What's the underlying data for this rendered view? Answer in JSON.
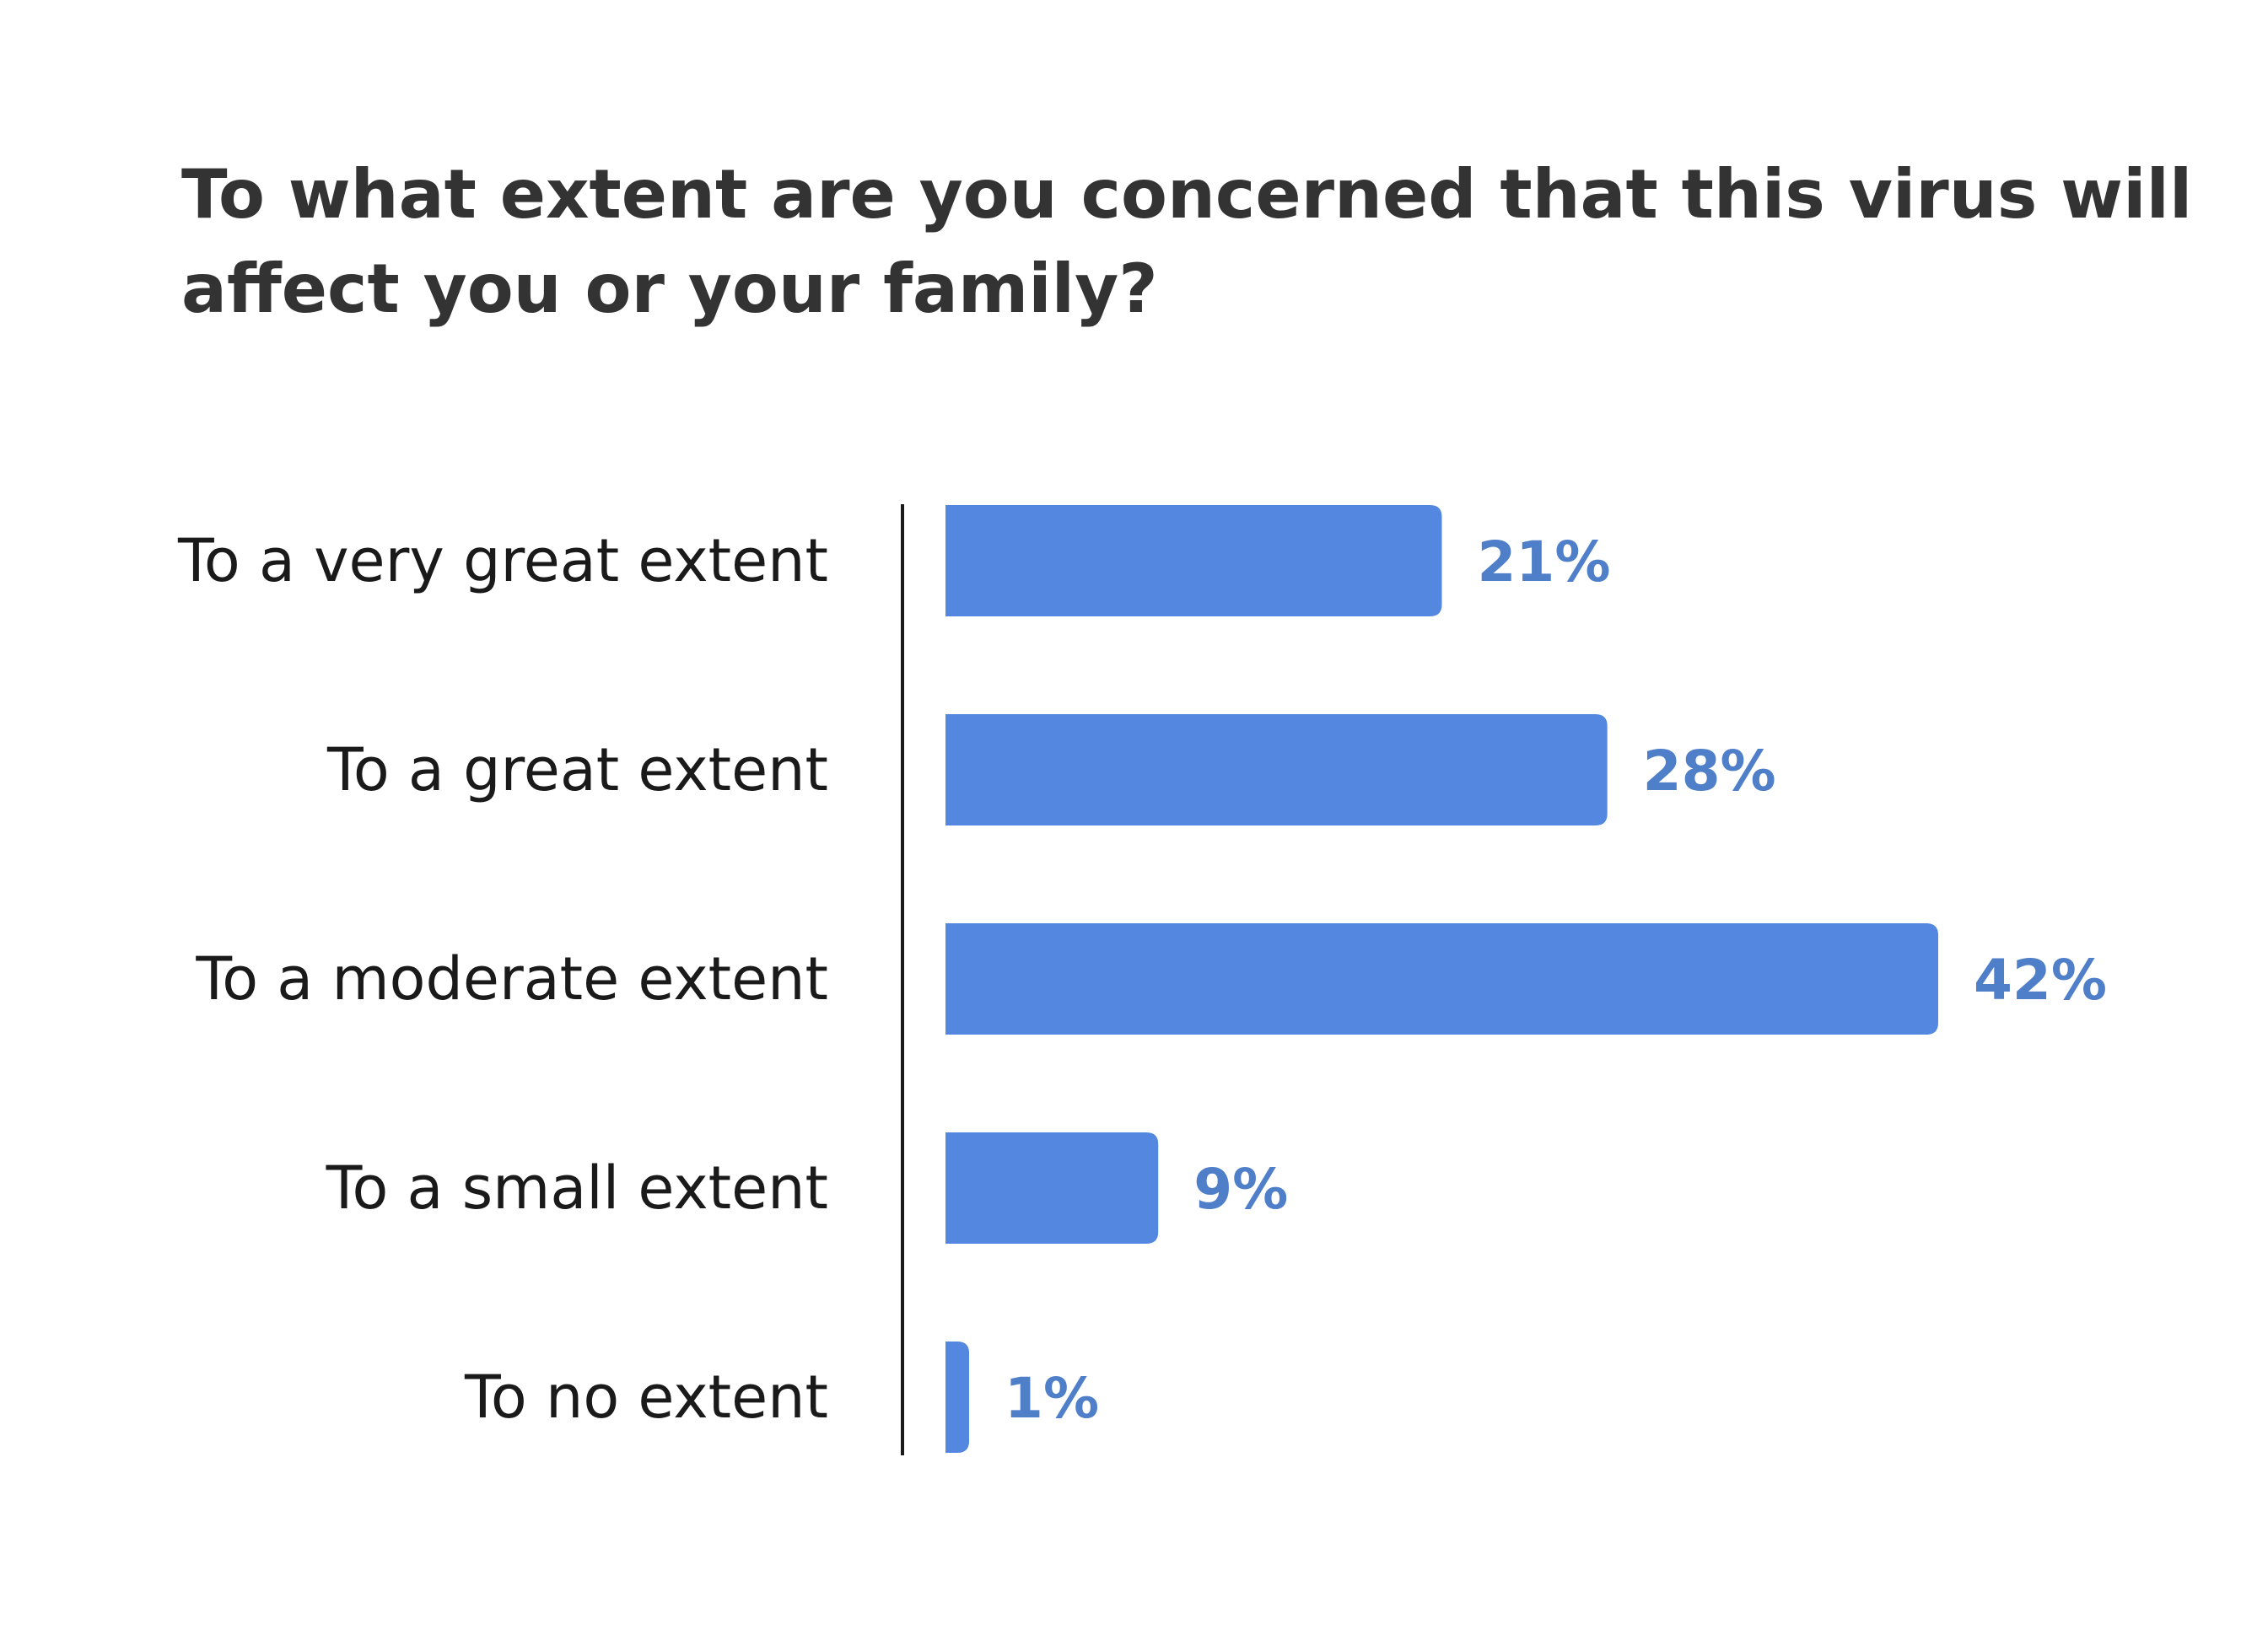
{
  "chart_data": {
    "type": "bar",
    "orientation": "horizontal",
    "title_lines": [
      "To what extent are you concerned that this virus will",
      "affect you or your family?"
    ],
    "categories": [
      "To a very great extent",
      "To a great extent",
      "To a moderate extent",
      "To a small extent",
      "To no extent"
    ],
    "values": [
      21,
      28,
      42,
      9,
      1
    ],
    "value_labels": [
      "21%",
      "28%",
      "42%",
      "9%",
      "1%"
    ],
    "unit": "%",
    "xlim": [
      0,
      42
    ],
    "grid": false,
    "legend": "none",
    "colors": {
      "bar": "#5487DF",
      "value_label": "#4F7FC8",
      "axis_line": "#1a1a1a",
      "title": "#333333",
      "category_label": "#1a1a1a"
    }
  }
}
